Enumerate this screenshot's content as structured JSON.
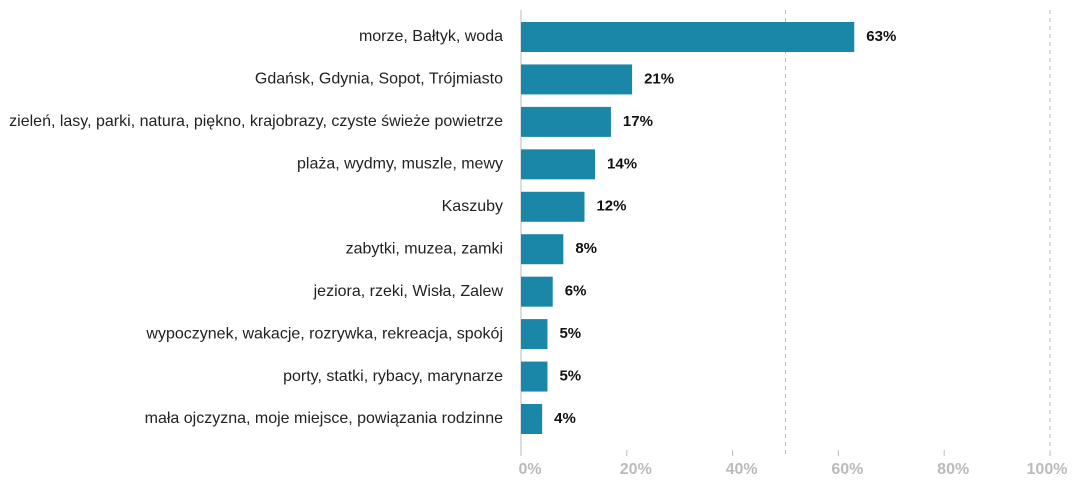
{
  "chart_data": {
    "type": "bar",
    "orientation": "horizontal",
    "categories": [
      "morze, Bałtyk, woda",
      "Gdańsk, Gdynia, Sopot, Trójmiasto",
      "zieleń, lasy, parki, natura, piękno, krajobrazy, czyste świeże powietrze",
      "plaża, wydmy, muszle, mewy",
      "Kaszuby",
      "zabytki, muzea, zamki",
      "jeziora, rzeki, Wisła, Zalew",
      "wypoczynek, wakacje, rozrywka, rekreacja, spokój",
      "porty, statki, rybacy, marynarze",
      "mała ojczyzna, moje miejsce, powiązania rodzinne"
    ],
    "values": [
      63,
      21,
      17,
      14,
      12,
      8,
      6,
      5,
      5,
      4
    ],
    "value_labels": [
      "63%",
      "21%",
      "17%",
      "14%",
      "12%",
      "8%",
      "6%",
      "5%",
      "5%",
      "4%"
    ],
    "color": "#1a87a8",
    "xlim": [
      0,
      100
    ],
    "xticks": [
      {
        "value": 0,
        "label": "0%"
      },
      {
        "value": 20,
        "label": "20%"
      },
      {
        "value": 40,
        "label": "40%"
      },
      {
        "value": 60,
        "label": "60%"
      },
      {
        "value": 80,
        "label": "80%"
      },
      {
        "value": 100,
        "label": "100%"
      }
    ],
    "grid_lines": [
      50,
      100
    ]
  }
}
